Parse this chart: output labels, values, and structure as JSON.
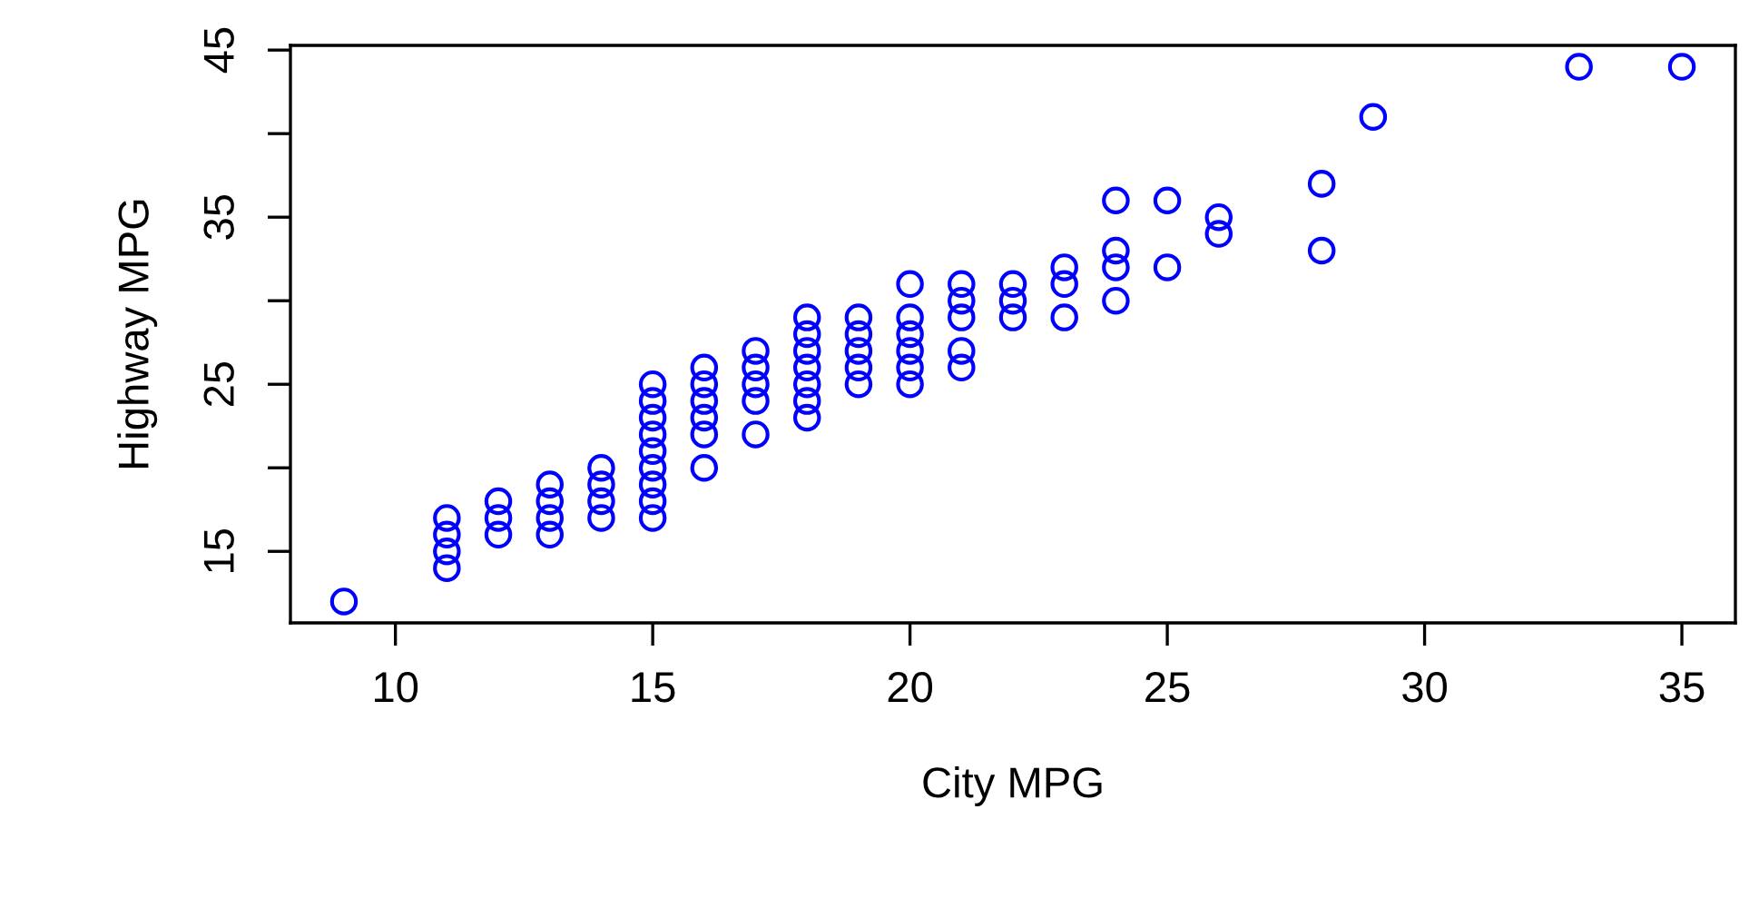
{
  "chart_data": {
    "type": "scatter",
    "xlabel": "City MPG",
    "ylabel": "Highway MPG",
    "marker": "circle",
    "grid": false,
    "xlim": [
      7.96,
      36.04
    ],
    "ylim": [
      10.72,
      45.28
    ],
    "xticks": [
      10,
      15,
      20,
      25,
      30,
      35
    ],
    "yticks": [
      15,
      {
        "value": 20,
        "label": null
      },
      25,
      {
        "value": 30,
        "label": null
      },
      35,
      {
        "value": 40,
        "label": null
      },
      45
    ],
    "series": [
      {
        "color": "#0000ff",
        "x": [
          9,
          11,
          11,
          11,
          11,
          12,
          12,
          12,
          13,
          13,
          13,
          13,
          14,
          14,
          14,
          14,
          15,
          15,
          15,
          15,
          15,
          15,
          15,
          15,
          15,
          16,
          16,
          16,
          16,
          16,
          16,
          17,
          17,
          17,
          17,
          17,
          18,
          18,
          18,
          18,
          18,
          18,
          18,
          19,
          19,
          19,
          19,
          19,
          20,
          20,
          20,
          20,
          20,
          20,
          21,
          21,
          21,
          21,
          21,
          22,
          22,
          22,
          23,
          23,
          23,
          24,
          24,
          24,
          24,
          25,
          25,
          26,
          26,
          28,
          28,
          29,
          33,
          35
        ],
        "values": [
          12,
          14,
          15,
          16,
          17,
          16,
          17,
          18,
          16,
          17,
          18,
          19,
          17,
          18,
          19,
          20,
          17,
          18,
          19,
          20,
          21,
          22,
          23,
          24,
          25,
          20,
          22,
          23,
          24,
          25,
          26,
          22,
          24,
          25,
          26,
          27,
          23,
          24,
          25,
          26,
          27,
          28,
          29,
          25,
          26,
          27,
          28,
          29,
          25,
          26,
          27,
          28,
          29,
          31,
          26,
          27,
          29,
          30,
          31,
          29,
          30,
          31,
          29,
          31,
          32,
          30,
          32,
          33,
          36,
          32,
          36,
          34,
          35,
          33,
          37,
          41,
          44,
          44
        ]
      }
    ]
  }
}
